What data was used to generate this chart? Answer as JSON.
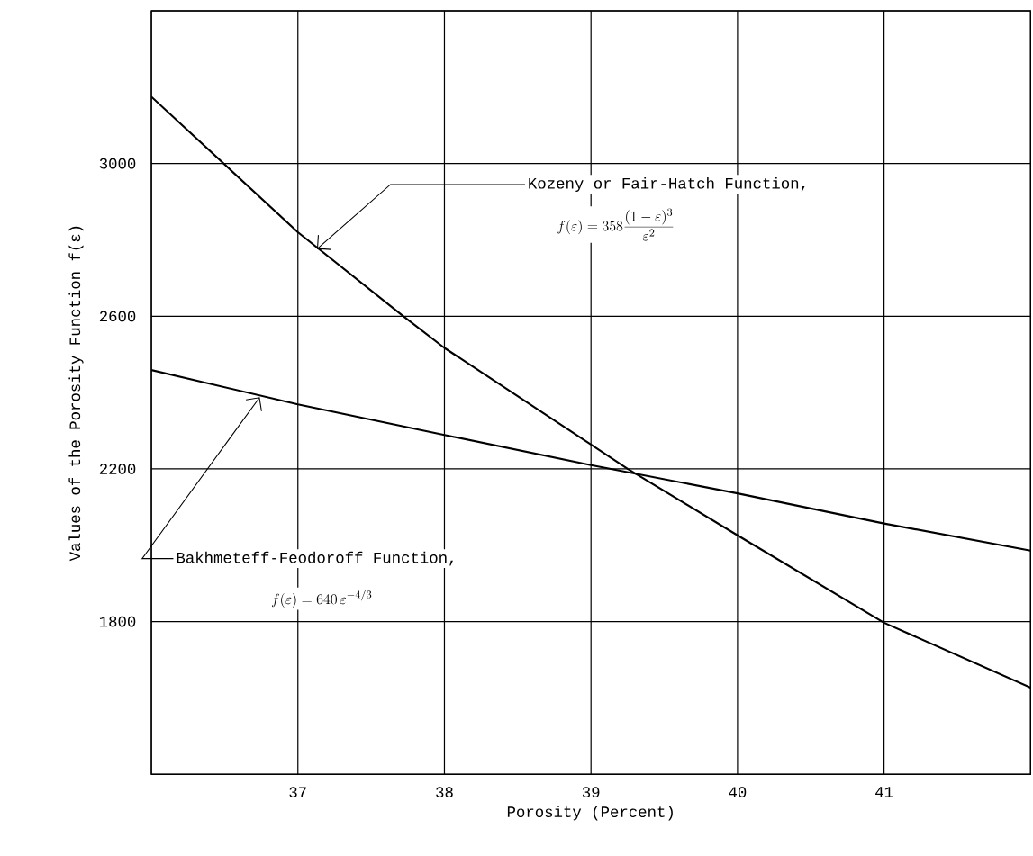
{
  "chart_data": {
    "type": "line",
    "xlabel": "Porosity (Percent)",
    "ylabel": "Values of the Porosity Function f(ε)",
    "xlim": [
      36,
      42
    ],
    "xticks": [
      {
        "value": 36,
        "label": null
      },
      37,
      38,
      39,
      40,
      41,
      {
        "value": 42,
        "label": null
      }
    ],
    "ylim": [
      1400,
      3400
    ],
    "yticks": [
      {
        "value": 1400,
        "label": null
      },
      1800,
      2200,
      2600,
      3000,
      {
        "value": 3400,
        "label": null
      }
    ],
    "grid": true,
    "series": [
      {
        "color": "#000000",
        "x": [
          36,
          37,
          37.72,
          38,
          39,
          39.25,
          40,
          41,
          42
        ],
        "values": [
          3175,
          2820,
          2600,
          2517,
          2264,
          2200,
          2026,
          1797,
          1627
        ]
      },
      {
        "color": "#000000",
        "x": [
          36,
          37,
          38,
          39,
          40,
          41,
          42
        ],
        "values": [
          2459,
          2369,
          2289,
          2210,
          2136,
          2057,
          1986
        ]
      }
    ],
    "annotations": [
      {
        "text": "Kozeny or Fair-Hatch Function,",
        "x": 37.13,
        "y": 2776
      },
      "f(\\varepsilon) = 358\\frac{(1-\\varepsilon)^{3}}{\\varepsilon^{2}}",
      {
        "text": "Bakhmeteff-Feodoroff Function,",
        "x": 36.74,
        "y": 2388
      },
      "f(\\varepsilon) = 640\\,\\varepsilon^{-4/3}"
    ]
  }
}
